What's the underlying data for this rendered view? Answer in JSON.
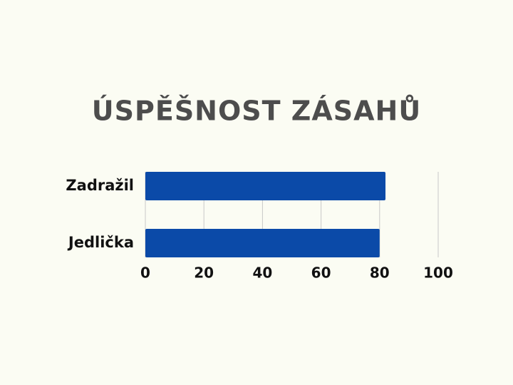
{
  "chart_data": {
    "type": "hbar",
    "title": "ÚSPĚŠNOST ZÁSAHŮ",
    "categories": [
      "Zadražil",
      "Jedlička"
    ],
    "values": [
      82,
      80
    ],
    "color": "#0b4aa8",
    "xlim": [
      0,
      100
    ],
    "xticks": [
      0,
      20,
      40,
      60,
      80,
      100
    ],
    "grid": true
  }
}
